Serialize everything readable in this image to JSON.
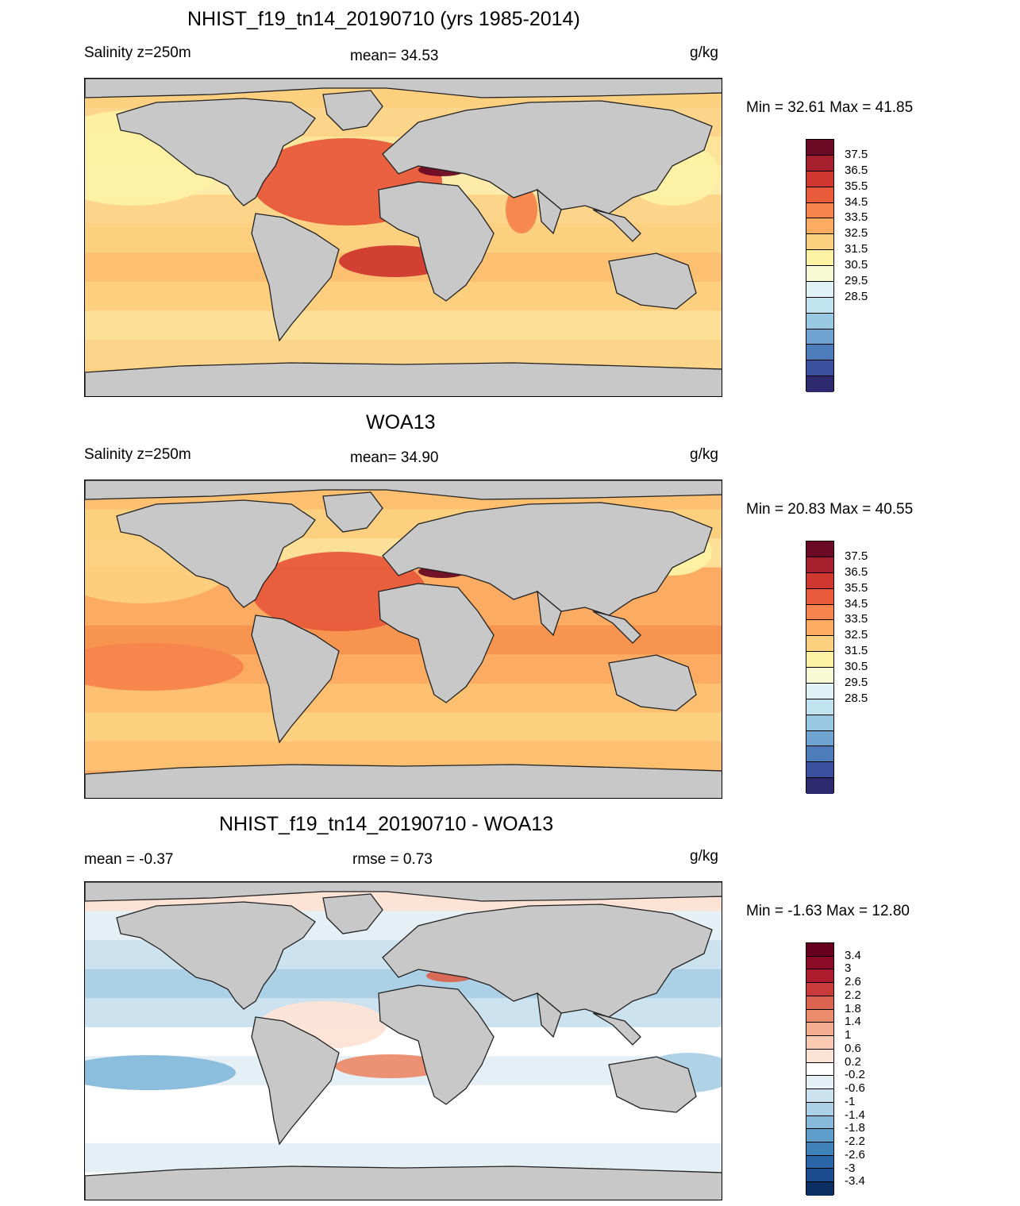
{
  "panels": [
    {
      "title": "NHIST_f19_tn14_20190710 (yrs 1985-2014)",
      "left_label": "Salinity z=250m",
      "center_label": "mean=  34.53",
      "units": "g/kg",
      "minmax": "Min =  32.61 Max =  41.85",
      "colorbar_ticks": [
        "37.5",
        "36.5",
        "35.5",
        "34.5",
        "33.5",
        "32.5",
        "31.5",
        "30.5",
        "29.5",
        "28.5"
      ],
      "colorbar_colors": [
        "#6a0a24",
        "#a51f2c",
        "#d0382f",
        "#e85a3a",
        "#f7844d",
        "#fcab62",
        "#fdd07f",
        "#fdf1a4",
        "#f6fbd6",
        "#e0f2f6",
        "#c0e3ef",
        "#97c9e2",
        "#6ea4cf",
        "#4d7cbb",
        "#3a4f9e",
        "#2e2a70"
      ],
      "map_style": "abs"
    },
    {
      "title": "WOA13",
      "left_label": "Salinity z=250m",
      "center_label": "mean=  34.90",
      "units": "g/kg",
      "minmax": "Min =  20.83 Max =  40.55",
      "colorbar_ticks": [
        "37.5",
        "36.5",
        "35.5",
        "34.5",
        "33.5",
        "32.5",
        "31.5",
        "30.5",
        "29.5",
        "28.5"
      ],
      "colorbar_colors": [
        "#6a0a24",
        "#a51f2c",
        "#d0382f",
        "#e85a3a",
        "#f7844d",
        "#fcab62",
        "#fdd07f",
        "#fdf1a4",
        "#f6fbd6",
        "#e0f2f6",
        "#c0e3ef",
        "#97c9e2",
        "#6ea4cf",
        "#4d7cbb",
        "#3a4f9e",
        "#2e2a70"
      ],
      "map_style": "woa"
    },
    {
      "title": "NHIST_f19_tn14_20190710 - WOA13",
      "left_label": "mean =  -0.37",
      "center_label": "rmse =   0.73",
      "units": "g/kg",
      "minmax": "Min =  -1.63 Max =  12.80",
      "colorbar_ticks": [
        "3.4",
        "3",
        "2.6",
        "2.2",
        "1.8",
        "1.4",
        "1",
        "0.6",
        "0.2",
        "-0.2",
        "-0.6",
        "-1",
        "-1.4",
        "-1.8",
        "-2.2",
        "-2.6",
        "-3",
        "-3.4"
      ],
      "colorbar_colors": [
        "#67001f",
        "#8b0a25",
        "#ae1b2c",
        "#c83b3a",
        "#da6450",
        "#ea8c6c",
        "#f4ad8e",
        "#fac9b1",
        "#fde3d5",
        "#ffffff",
        "#e4eff6",
        "#cce2ef",
        "#acd0e6",
        "#86b9da",
        "#5f9ecb",
        "#3f82ba",
        "#2a65a8",
        "#1a4c8f",
        "#0b2f63"
      ],
      "map_style": "diff"
    }
  ]
}
